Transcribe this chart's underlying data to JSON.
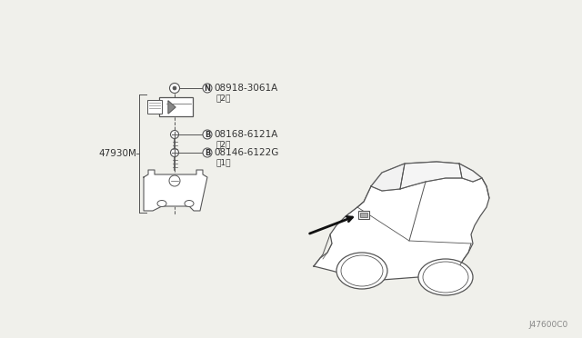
{
  "background_color": "#f0f0eb",
  "diagram_id": "J47600C0",
  "line_color": "#555555",
  "text_color": "#333333",
  "font_size": 7.5,
  "small_font_size": 6.5,
  "bracket_label": "47930M",
  "parts": [
    {
      "circle": "N",
      "part_num": "08918-3061A",
      "qty": "(2)"
    },
    {
      "circle": "B",
      "part_num": "08168-6121A",
      "qty": "(2)"
    },
    {
      "circle": "B",
      "part_num": "08146-6122G",
      "qty": "(1)"
    }
  ]
}
